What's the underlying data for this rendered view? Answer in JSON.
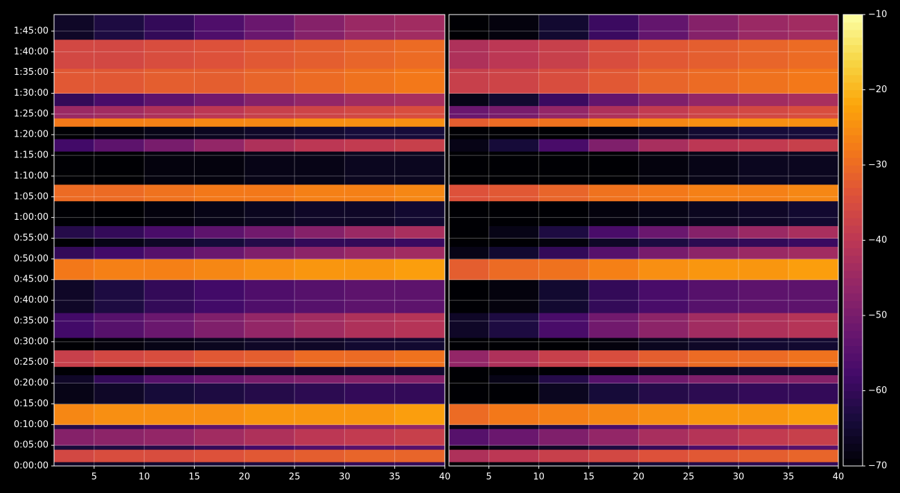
{
  "chart_data": [
    {
      "type": "heatmap",
      "colormap": "inferno",
      "zlim": [
        -70,
        -10
      ],
      "grid": true,
      "xbins": [
        1,
        5,
        10,
        15,
        20,
        25,
        30,
        35,
        40
      ],
      "ybins": [
        0,
        60,
        240,
        300,
        540,
        600,
        900,
        1200,
        1320,
        1440,
        1680,
        1860,
        2220,
        2700,
        3000,
        3180,
        3300,
        3480,
        3840,
        4080,
        4560,
        4740,
        4920,
        5040,
        5220,
        5400,
        5760,
        6180,
        6540
      ],
      "xlim": [
        1,
        40
      ],
      "ylim": [
        0,
        6540
      ],
      "xticks": [
        5,
        10,
        15,
        20,
        25,
        30,
        35,
        40
      ],
      "yticks": [
        {
          "value": 0,
          "label": "0:00:00"
        },
        {
          "value": 300,
          "label": "0:05:00"
        },
        {
          "value": 600,
          "label": "0:10:00"
        },
        {
          "value": 900,
          "label": "0:15:00"
        },
        {
          "value": 1200,
          "label": "0:20:00"
        },
        {
          "value": 1500,
          "label": "0:25:00"
        },
        {
          "value": 1800,
          "label": "0:30:00"
        },
        {
          "value": 2100,
          "label": "0:35:00"
        },
        {
          "value": 2400,
          "label": "0:40:00"
        },
        {
          "value": 2700,
          "label": "0:45:00"
        },
        {
          "value": 3000,
          "label": "0:50:00"
        },
        {
          "value": 3300,
          "label": "0:55:00"
        },
        {
          "value": 3600,
          "label": "1:00:00"
        },
        {
          "value": 3900,
          "label": "1:05:00"
        },
        {
          "value": 4200,
          "label": "1:10:00"
        },
        {
          "value": 4500,
          "label": "1:15:00"
        },
        {
          "value": 4800,
          "label": "1:20:00"
        },
        {
          "value": 5100,
          "label": "1:25:00"
        },
        {
          "value": 5400,
          "label": "1:30:00"
        },
        {
          "value": 5700,
          "label": "1:35:00"
        },
        {
          "value": 6000,
          "label": "1:40:00"
        },
        {
          "value": 6300,
          "label": "1:45:00"
        }
      ],
      "values": [
        [
          -66,
          -66,
          -65,
          -64,
          -63,
          -62,
          -60,
          -60
        ],
        [
          -36,
          -35,
          -35,
          -34,
          -33,
          -32,
          -31,
          -31
        ],
        [
          -64,
          -63,
          -62,
          -60,
          -58,
          -56,
          -55,
          -55
        ],
        [
          -48,
          -47,
          -46,
          -44,
          -42,
          -40,
          -39,
          -38
        ],
        [
          -62,
          -60,
          -57,
          -54,
          -50,
          -48,
          -47,
          -46
        ],
        [
          -26,
          -25,
          -25,
          -25,
          -24,
          -24,
          -24,
          -23
        ],
        [
          -68,
          -66,
          -64,
          -63,
          -62,
          -61,
          -60,
          -60
        ],
        [
          -66,
          -60,
          -55,
          -52,
          -50,
          -49,
          -48,
          -48
        ],
        [
          -70,
          -70,
          -68,
          -67,
          -66,
          -66,
          -65,
          -65
        ],
        [
          -38,
          -36,
          -35,
          -33,
          -32,
          -30,
          -30,
          -29
        ],
        [
          -70,
          -69,
          -68,
          -67,
          -66,
          -66,
          -65,
          -65
        ],
        [
          -58,
          -55,
          -52,
          -49,
          -46,
          -44,
          -42,
          -41
        ],
        [
          -66,
          -63,
          -60,
          -58,
          -56,
          -55,
          -54,
          -54
        ],
        [
          -28,
          -27,
          -27,
          -26,
          -25,
          -24,
          -24,
          -23
        ],
        [
          -60,
          -58,
          -55,
          -52,
          -49,
          -47,
          -45,
          -44
        ],
        [
          -70,
          -68,
          -66,
          -64,
          -62,
          -60,
          -60,
          -59
        ],
        [
          -62,
          -60,
          -57,
          -54,
          -51,
          -48,
          -45,
          -43
        ],
        [
          -70,
          -70,
          -69,
          -68,
          -67,
          -66,
          -66,
          -65
        ],
        [
          -30,
          -30,
          -29,
          -28,
          -28,
          -27,
          -27,
          -26
        ],
        [
          -70,
          -70,
          -69,
          -69,
          -68,
          -68,
          -67,
          -67
        ],
        [
          -58,
          -54,
          -50,
          -46,
          -42,
          -40,
          -39,
          -38
        ],
        [
          -70,
          -69,
          -68,
          -67,
          -66,
          -65,
          -64,
          -64
        ],
        [
          -28,
          -27,
          -27,
          -26,
          -26,
          -25,
          -25,
          -25
        ],
        [
          -45,
          -44,
          -42,
          -40,
          -38,
          -37,
          -36,
          -35
        ],
        [
          -60,
          -57,
          -54,
          -51,
          -48,
          -46,
          -44,
          -43
        ],
        [
          -33,
          -33,
          -32,
          -32,
          -31,
          -30,
          -29,
          -28
        ],
        [
          -36,
          -36,
          -35,
          -34,
          -33,
          -32,
          -31,
          -30
        ],
        [
          -66,
          -63,
          -60,
          -56,
          -52,
          -48,
          -45,
          -44
        ]
      ]
    },
    {
      "type": "heatmap",
      "colormap": "inferno",
      "zlim": [
        -70,
        -10
      ],
      "grid": true,
      "xbins": [
        1,
        5,
        10,
        15,
        20,
        25,
        30,
        35,
        40
      ],
      "ybins": [
        0,
        60,
        240,
        300,
        540,
        600,
        900,
        1200,
        1320,
        1440,
        1680,
        1860,
        2220,
        2700,
        3000,
        3180,
        3300,
        3480,
        3840,
        4080,
        4560,
        4740,
        4920,
        5040,
        5220,
        5400,
        5760,
        6180,
        6540
      ],
      "xlim": [
        1,
        40
      ],
      "ylim": [
        0,
        6540
      ],
      "xticks": [
        5,
        10,
        15,
        20,
        25,
        30,
        35,
        40
      ],
      "colorbar_ticks": [
        {
          "value": -70,
          "label": "−70"
        },
        {
          "value": -60,
          "label": "−60"
        },
        {
          "value": -50,
          "label": "−50"
        },
        {
          "value": -40,
          "label": "−40"
        },
        {
          "value": -30,
          "label": "−30"
        },
        {
          "value": -20,
          "label": "−20"
        },
        {
          "value": -10,
          "label": "−10"
        }
      ],
      "values": [
        [
          -70,
          -69,
          -68,
          -66,
          -64,
          -62,
          -61,
          -60
        ],
        [
          -42,
          -40,
          -38,
          -36,
          -34,
          -33,
          -32,
          -31
        ],
        [
          -70,
          -68,
          -66,
          -63,
          -60,
          -57,
          -55,
          -55
        ],
        [
          -55,
          -52,
          -49,
          -46,
          -43,
          -41,
          -39,
          -38
        ],
        [
          -68,
          -66,
          -62,
          -57,
          -52,
          -49,
          -47,
          -46
        ],
        [
          -30,
          -28,
          -27,
          -26,
          -25,
          -24,
          -24,
          -23
        ],
        [
          -70,
          -70,
          -67,
          -64,
          -62,
          -61,
          -60,
          -60
        ],
        [
          -70,
          -68,
          -62,
          -55,
          -51,
          -49,
          -48,
          -48
        ],
        [
          -70,
          -70,
          -70,
          -69,
          -67,
          -66,
          -65,
          -65
        ],
        [
          -46,
          -42,
          -38,
          -35,
          -32,
          -30,
          -30,
          -29
        ],
        [
          -70,
          -70,
          -70,
          -69,
          -67,
          -66,
          -65,
          -65
        ],
        [
          -66,
          -63,
          -57,
          -51,
          -47,
          -44,
          -42,
          -41
        ],
        [
          -70,
          -69,
          -65,
          -60,
          -57,
          -55,
          -54,
          -54
        ],
        [
          -32,
          -30,
          -29,
          -27,
          -25,
          -24,
          -24,
          -23
        ],
        [
          -68,
          -65,
          -60,
          -55,
          -50,
          -47,
          -45,
          -44
        ],
        [
          -70,
          -70,
          -69,
          -66,
          -63,
          -61,
          -60,
          -59
        ],
        [
          -70,
          -68,
          -63,
          -57,
          -52,
          -48,
          -45,
          -43
        ],
        [
          -70,
          -70,
          -70,
          -69,
          -68,
          -67,
          -66,
          -65
        ],
        [
          -34,
          -33,
          -31,
          -29,
          -28,
          -27,
          -27,
          -26
        ],
        [
          -70,
          -70,
          -70,
          -70,
          -69,
          -68,
          -67,
          -67
        ],
        [
          -68,
          -64,
          -57,
          -49,
          -43,
          -40,
          -39,
          -38
        ],
        [
          -70,
          -70,
          -70,
          -69,
          -67,
          -65,
          -64,
          -64
        ],
        [
          -32,
          -30,
          -29,
          -27,
          -26,
          -25,
          -25,
          -25
        ],
        [
          -52,
          -50,
          -46,
          -42,
          -39,
          -37,
          -36,
          -35
        ],
        [
          -68,
          -65,
          -59,
          -53,
          -49,
          -46,
          -44,
          -43
        ],
        [
          -38,
          -37,
          -35,
          -33,
          -31,
          -30,
          -29,
          -28
        ],
        [
          -42,
          -40,
          -38,
          -35,
          -33,
          -32,
          -31,
          -30
        ],
        [
          -70,
          -69,
          -65,
          -59,
          -53,
          -48,
          -45,
          -44
        ]
      ]
    }
  ]
}
